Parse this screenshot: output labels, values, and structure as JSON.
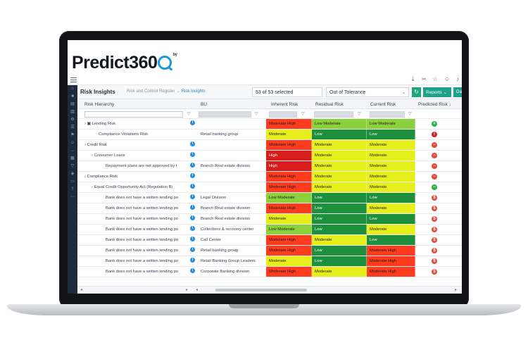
{
  "app": {
    "logo_text": "Predict360",
    "logo_tm": "by"
  },
  "toolbar_icons": [
    "pin-icon",
    "scissors-icon",
    "star-icon",
    "user-icon",
    "bell-icon"
  ],
  "page": {
    "title": "Risk Insights",
    "breadcrumb": {
      "parent": "Risk and Control Register",
      "separator": "→",
      "current": "Risk Insights"
    },
    "selection": "53 of 53 selected",
    "tolerance_select": "Out of Tolerance",
    "reports_label": "Reports",
    "da_label": "Das"
  },
  "columns": [
    "Risk Hierarchy",
    "BU",
    "Inherent Risk",
    "Residual Risk",
    "Current Risk",
    "Predicted Risk"
  ],
  "colors": {
    "moderate_high": "#ff3b1f",
    "moderate": "#e6ee1c",
    "high": "#d81b1b",
    "low_moderate": "#8bd13c",
    "low": "#1e8f3c",
    "pred_green": "#2eb14a",
    "pred_red": "#e04b3c",
    "pred_red_dark": "#c62828"
  },
  "rows": [
    {
      "hier": "Lending Risk",
      "indent": 0,
      "caret": "›",
      "icon": "folder-icon",
      "bu": "",
      "ir": "Moderate High",
      "ir_c": "moderate_high",
      "rr": "Low Moderate",
      "rr_c": "low_moderate",
      "cr": "Low Moderate",
      "cr_c": "low_moderate",
      "pred": "+",
      "pred_c": "pred_green"
    },
    {
      "hier": "Compliance Violations Risk",
      "indent": 2,
      "caret": "",
      "icon": "",
      "bu": "Retail banking group",
      "ir": "Moderate",
      "ir_c": "moderate",
      "rr": "Low",
      "rr_c": "low",
      "cr": "Low",
      "cr_c": "low",
      "pred": "!",
      "pred_c": "pred_red_dark"
    },
    {
      "hier": "Credit Risk",
      "indent": 0,
      "caret": "›",
      "icon": "",
      "bu": "",
      "ir": "Moderate High",
      "ir_c": "moderate_high",
      "rr": "Moderate",
      "rr_c": "moderate",
      "cr": "Moderate",
      "cr_c": "moderate",
      "pred": "−",
      "pred_c": "pred_red"
    },
    {
      "hier": "Consumer Loans",
      "indent": 1,
      "caret": "›",
      "icon": "",
      "bu": "",
      "ir": "High",
      "ir_c": "high",
      "rr": "Moderate",
      "rr_c": "moderate",
      "cr": "Moderate",
      "cr_c": "moderate",
      "pred": "−",
      "pred_c": "pred_red"
    },
    {
      "hier": "Repayment plans are not approved by t",
      "indent": 3,
      "caret": "",
      "icon": "",
      "bu": "Branch Real estate division",
      "ir": "High",
      "ir_c": "high",
      "rr": "Moderate",
      "rr_c": "moderate",
      "cr": "Moderate",
      "cr_c": "moderate",
      "pred": "−",
      "pred_c": "pred_red"
    },
    {
      "hier": "Compliance Risk",
      "indent": 0,
      "caret": "›",
      "icon": "",
      "bu": "",
      "ir": "Moderate High",
      "ir_c": "moderate_high",
      "rr": "Moderate",
      "rr_c": "moderate",
      "cr": "Moderate",
      "cr_c": "moderate",
      "pred": "−",
      "pred_c": "pred_red"
    },
    {
      "hier": "Equal Credit Opportunity Act (Regulation B)",
      "indent": 1,
      "caret": "›",
      "icon": "",
      "bu": "",
      "ir": "Moderate High",
      "ir_c": "moderate_high",
      "rr": "Moderate",
      "rr_c": "moderate",
      "cr": "Moderate",
      "cr_c": "moderate",
      "pred": "−",
      "pred_c": "pred_green"
    },
    {
      "hier": "Bank does not have a written lending po",
      "indent": 3,
      "caret": "",
      "icon": "",
      "bu": "Legal Division",
      "ir": "Low Moderate",
      "ir_c": "low_moderate",
      "rr": "Low",
      "rr_c": "low",
      "cr": "Low",
      "cr_c": "low",
      "pred": "$",
      "pred_c": "pred_red"
    },
    {
      "hier": "Bank does not have a written lending po",
      "indent": 3,
      "caret": "",
      "icon": "",
      "bu": "Branch Real estate division",
      "ir": "Moderate High",
      "ir_c": "moderate_high",
      "rr": "Low",
      "rr_c": "low",
      "cr": "Moderate",
      "cr_c": "moderate",
      "pred": "$",
      "pred_c": "pred_red"
    },
    {
      "hier": "Bank does not have a written lending po",
      "indent": 3,
      "caret": "",
      "icon": "",
      "bu": "Branch Real estate division",
      "ir": "Moderate",
      "ir_c": "moderate",
      "rr": "Low",
      "rr_c": "low",
      "cr": "Low",
      "cr_c": "low",
      "pred": "$",
      "pred_c": "pred_red"
    },
    {
      "hier": "Bank does not have a written lending po",
      "indent": 3,
      "caret": "",
      "icon": "",
      "bu": "Collections & recovery center",
      "ir": "Low Moderate",
      "ir_c": "low_moderate",
      "rr": "Low",
      "rr_c": "low",
      "cr": "Moderate",
      "cr_c": "moderate",
      "pred": "$",
      "pred_c": "pred_red"
    },
    {
      "hier": "Bank does not have a written lending po",
      "indent": 3,
      "caret": "",
      "icon": "",
      "bu": "Call Center",
      "ir": "Moderate High",
      "ir_c": "moderate_high",
      "rr": "Moderate",
      "rr_c": "moderate",
      "cr": "Low",
      "cr_c": "low",
      "pred": "$",
      "pred_c": "pred_red"
    },
    {
      "hier": "Bank does not have a written lending po",
      "indent": 3,
      "caret": "",
      "icon": "",
      "bu": "Retail banking group",
      "ir": "Moderate High",
      "ir_c": "moderate_high",
      "rr": "Low",
      "rr_c": "low",
      "cr": "Moderate High",
      "cr_c": "moderate_high",
      "pred": "$",
      "pred_c": "pred_red"
    },
    {
      "hier": "Bank does not have a written lending po",
      "indent": 3,
      "caret": "",
      "icon": "",
      "bu": "Retail Banking Group Leaders",
      "ir": "Moderate",
      "ir_c": "moderate",
      "rr": "Low",
      "rr_c": "low",
      "cr": "Moderate High",
      "cr_c": "moderate_high",
      "pred": "$",
      "pred_c": "pred_red"
    },
    {
      "hier": "Bank does not have a written lending po",
      "indent": 3,
      "caret": "",
      "icon": "",
      "bu": "Corporate Banking division",
      "ir": "Moderate High",
      "ir_c": "moderate_high",
      "rr": "Moderate",
      "rr_c": "moderate",
      "cr": "Moderate High",
      "cr_c": "moderate_high",
      "pred": "$",
      "pred_c": "pred_red"
    }
  ]
}
